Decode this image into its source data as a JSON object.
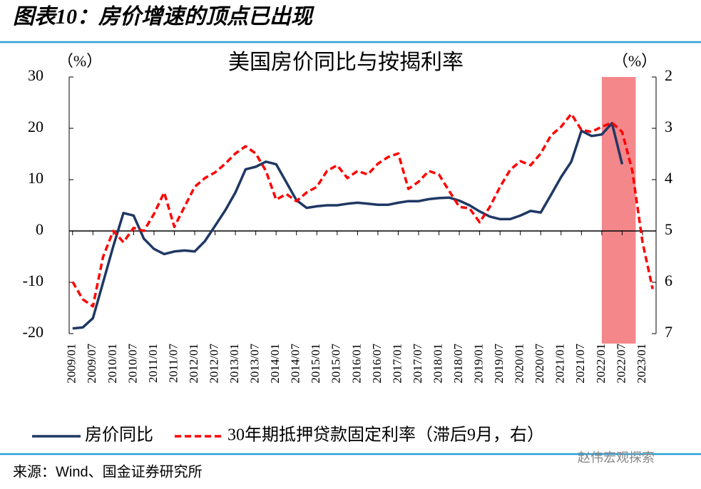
{
  "header": {
    "title": "图表10：房价增速的顶点已出现"
  },
  "chart_data": {
    "type": "line",
    "title": "美国房价同比与按揭利率",
    "y_unit": "（%）",
    "y2_unit": "（%）",
    "x": [
      "2009/01",
      "2009/04",
      "2009/07",
      "2009/10",
      "2010/01",
      "2010/04",
      "2010/07",
      "2010/10",
      "2011/01",
      "2011/04",
      "2011/07",
      "2011/10",
      "2012/01",
      "2012/04",
      "2012/07",
      "2012/10",
      "2013/01",
      "2013/04",
      "2013/07",
      "2013/10",
      "2014/01",
      "2014/04",
      "2014/07",
      "2014/10",
      "2015/01",
      "2015/04",
      "2015/07",
      "2015/10",
      "2016/01",
      "2016/04",
      "2016/07",
      "2016/10",
      "2017/01",
      "2017/04",
      "2017/07",
      "2017/10",
      "2018/01",
      "2018/04",
      "2018/07",
      "2018/10",
      "2019/01",
      "2019/04",
      "2019/07",
      "2019/10",
      "2020/01",
      "2020/04",
      "2020/07",
      "2020/10",
      "2021/01",
      "2021/04",
      "2021/07",
      "2021/10",
      "2022/01",
      "2022/04",
      "2022/07",
      "2022/10",
      "2023/01",
      "2023/04"
    ],
    "series": [
      {
        "name": "房价同比",
        "color": "#1f3864",
        "axis": "y",
        "values": [
          -19,
          -18.8,
          -17,
          -10,
          -3,
          3.5,
          3,
          -1.5,
          -3.5,
          -4.5,
          -4,
          -3.8,
          -4,
          -2,
          1,
          4,
          7.5,
          12,
          12.5,
          13.5,
          13,
          9.5,
          6,
          4.5,
          4.8,
          5,
          5,
          5.3,
          5.5,
          5.3,
          5.1,
          5.1,
          5.5,
          5.8,
          5.8,
          6.2,
          6.4,
          6.5,
          5.9,
          5,
          3.8,
          2.8,
          2.3,
          2.3,
          3,
          3.9,
          3.6,
          7,
          10.5,
          13.5,
          19.5,
          18.5,
          18.8,
          21,
          13,
          null,
          null,
          null
        ]
      },
      {
        "name": "30年期抵押贷款固定利率（滞后9月，右）",
        "color": "#ff0000",
        "axis": "y2",
        "values": [
          5.99,
          6.33,
          6.47,
          5.5,
          5.0,
          5.22,
          4.94,
          5.0,
          4.67,
          4.25,
          4.92,
          4.53,
          4.14,
          3.97,
          3.86,
          3.69,
          3.49,
          3.35,
          3.49,
          3.83,
          4.39,
          4.28,
          4.42,
          4.25,
          4.14,
          3.83,
          3.72,
          3.97,
          3.83,
          3.9,
          3.69,
          3.56,
          3.49,
          4.18,
          4.04,
          3.83,
          3.9,
          4.22,
          4.53,
          4.56,
          4.83,
          4.53,
          4.14,
          3.81,
          3.64,
          3.72,
          3.49,
          3.14,
          2.97,
          2.72,
          3.03,
          3.07,
          2.97,
          2.89,
          3.07,
          3.83,
          5.22,
          6.13
        ]
      }
    ],
    "xlim": [
      "2008/12",
      "2023/05"
    ],
    "xticks": [
      "2009/01",
      "2009/07",
      "2010/01",
      "2010/07",
      "2011/01",
      "2011/07",
      "2012/01",
      "2012/07",
      "2013/01",
      "2013/07",
      "2014/01",
      "2014/07",
      "2015/01",
      "2015/07",
      "2016/01",
      "2016/07",
      "2017/01",
      "2017/07",
      "2018/01",
      "2018/07",
      "2019/01",
      "2019/07",
      "2020/01",
      "2020/07",
      "2021/01",
      "2021/07",
      "2022/01",
      "2022/07",
      "2023/01"
    ],
    "ylim": [
      -20,
      30
    ],
    "yticks": [
      -20,
      -10,
      0,
      10,
      20,
      30
    ],
    "y2lim": [
      7,
      2
    ],
    "y2ticks": [
      2,
      3,
      4,
      5,
      6,
      7
    ],
    "highlight": [
      "2022/01",
      "2022/11"
    ],
    "highlight_color": "#f4878a"
  },
  "footer": {
    "source": "来源：Wind、国金证券研究所",
    "watermark": "赵伟宏观探索"
  }
}
